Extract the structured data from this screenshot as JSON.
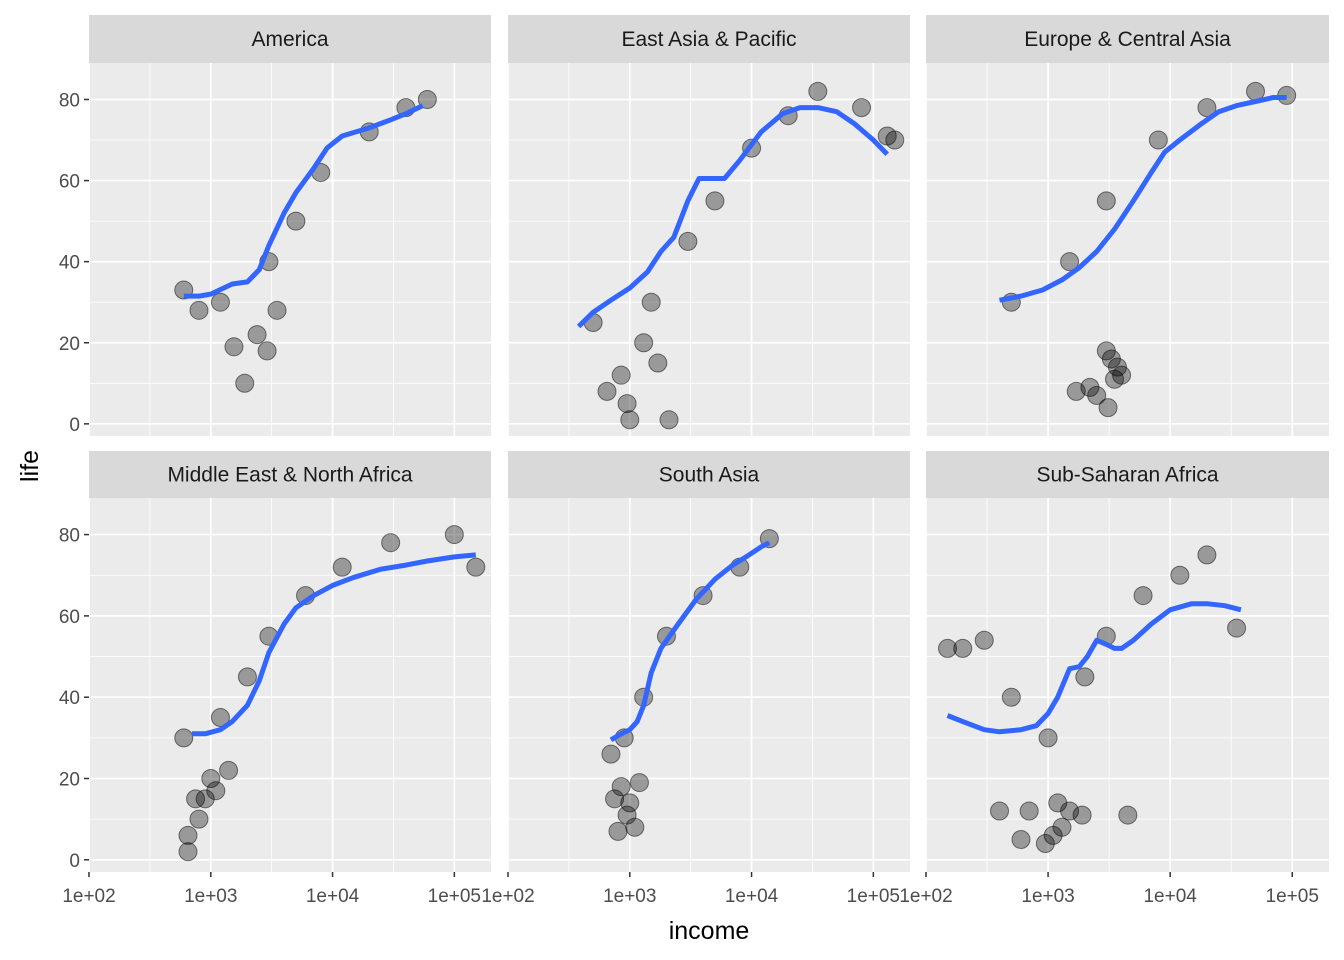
{
  "chart_data": {
    "type": "scatter",
    "xlabel": "income",
    "ylabel": "life",
    "x_scale": "log10",
    "xlim": [
      100,
      200000
    ],
    "ylim": [
      -3,
      89
    ],
    "x_ticks": [
      {
        "value": 100,
        "label": "1e+02"
      },
      {
        "value": 1000,
        "label": "1e+03"
      },
      {
        "value": 10000,
        "label": "1e+04"
      },
      {
        "value": 100000,
        "label": "1e+05"
      }
    ],
    "y_ticks": [
      {
        "value": 0,
        "label": "0"
      },
      {
        "value": 20,
        "label": "20"
      },
      {
        "value": 40,
        "label": "40"
      },
      {
        "value": 60,
        "label": "60"
      },
      {
        "value": 80,
        "label": "80"
      }
    ],
    "grid": true,
    "point_color": "#000000",
    "point_alpha": 0.35,
    "smooth_color": "#3366ff",
    "panel_bg": "#ebebeb",
    "strip_bg": "#d9d9d9",
    "panels": [
      {
        "label": "America",
        "points": [
          [
            1900,
            10
          ],
          [
            1550,
            19
          ],
          [
            2900,
            18
          ],
          [
            3500,
            28
          ],
          [
            2400,
            22
          ],
          [
            600,
            33
          ],
          [
            800,
            28
          ],
          [
            1200,
            30
          ],
          [
            3000,
            40
          ],
          [
            5000,
            50
          ],
          [
            8000,
            62
          ],
          [
            20000,
            72
          ],
          [
            40000,
            78
          ],
          [
            60000,
            80
          ]
        ],
        "smooth": [
          [
            600,
            31.5
          ],
          [
            800,
            31.5
          ],
          [
            1000,
            32
          ],
          [
            1500,
            34.5
          ],
          [
            2000,
            35
          ],
          [
            2500,
            38
          ],
          [
            3000,
            44
          ],
          [
            4000,
            52
          ],
          [
            5000,
            57
          ],
          [
            7000,
            63
          ],
          [
            9000,
            68
          ],
          [
            12000,
            71
          ],
          [
            20000,
            73
          ],
          [
            30000,
            75
          ],
          [
            40000,
            76.5
          ],
          [
            55000,
            78.5
          ]
        ]
      },
      {
        "label": "East Asia & Pacific",
        "points": [
          [
            650,
            8
          ],
          [
            850,
            12
          ],
          [
            1000,
            1
          ],
          [
            950,
            5
          ],
          [
            2100,
            1
          ],
          [
            1300,
            20
          ],
          [
            1700,
            15
          ],
          [
            500,
            25
          ],
          [
            1500,
            30
          ],
          [
            3000,
            45
          ],
          [
            5000,
            55
          ],
          [
            10000,
            68
          ],
          [
            20000,
            76
          ],
          [
            35000,
            82
          ],
          [
            80000,
            78
          ],
          [
            130000,
            71
          ],
          [
            150000,
            70
          ]
        ],
        "smooth": [
          [
            380,
            24
          ],
          [
            500,
            27.5
          ],
          [
            700,
            30.5
          ],
          [
            1000,
            33.5
          ],
          [
            1400,
            37.5
          ],
          [
            1800,
            42.5
          ],
          [
            2300,
            46
          ],
          [
            3000,
            55
          ],
          [
            3700,
            60.5
          ],
          [
            4500,
            60.5
          ],
          [
            6000,
            60.5
          ],
          [
            8000,
            65
          ],
          [
            12000,
            72
          ],
          [
            18000,
            76.5
          ],
          [
            25000,
            78
          ],
          [
            35000,
            78
          ],
          [
            50000,
            77
          ],
          [
            70000,
            74
          ],
          [
            100000,
            70
          ],
          [
            130000,
            66.5
          ]
        ]
      },
      {
        "label": "Europe & Central Asia",
        "points": [
          [
            1700,
            8
          ],
          [
            2500,
            7
          ],
          [
            3100,
            4
          ],
          [
            2200,
            9
          ],
          [
            3500,
            11
          ],
          [
            3700,
            14
          ],
          [
            3300,
            16
          ],
          [
            4000,
            12
          ],
          [
            3000,
            18
          ],
          [
            500,
            30
          ],
          [
            1500,
            40
          ],
          [
            3000,
            55
          ],
          [
            8000,
            70
          ],
          [
            20000,
            78
          ],
          [
            50000,
            82
          ],
          [
            90000,
            81
          ]
        ],
        "smooth": [
          [
            400,
            30.5
          ],
          [
            600,
            31.5
          ],
          [
            900,
            33
          ],
          [
            1300,
            35.5
          ],
          [
            1800,
            38.5
          ],
          [
            2500,
            42.5
          ],
          [
            3500,
            48
          ],
          [
            5000,
            55
          ],
          [
            7000,
            62
          ],
          [
            9000,
            67
          ],
          [
            12000,
            70
          ],
          [
            18000,
            74
          ],
          [
            25000,
            77
          ],
          [
            35000,
            78.5
          ],
          [
            50000,
            79.5
          ],
          [
            70000,
            80.5
          ],
          [
            90000,
            80.5
          ]
        ]
      },
      {
        "label": "Middle East & North Africa",
        "points": [
          [
            650,
            2
          ],
          [
            650,
            6
          ],
          [
            800,
            10
          ],
          [
            900,
            15
          ],
          [
            750,
            15
          ],
          [
            1100,
            17
          ],
          [
            1000,
            20
          ],
          [
            1400,
            22
          ],
          [
            600,
            30
          ],
          [
            1200,
            35
          ],
          [
            2000,
            45
          ],
          [
            3000,
            55
          ],
          [
            6000,
            65
          ],
          [
            12000,
            72
          ],
          [
            30000,
            78
          ],
          [
            100000,
            80
          ],
          [
            150000,
            72
          ]
        ],
        "smooth": [
          [
            700,
            31
          ],
          [
            900,
            31
          ],
          [
            1200,
            32
          ],
          [
            1500,
            34
          ],
          [
            2000,
            38
          ],
          [
            2500,
            44
          ],
          [
            3000,
            51
          ],
          [
            4000,
            58
          ],
          [
            5000,
            62
          ],
          [
            7000,
            65
          ],
          [
            10000,
            67.5
          ],
          [
            15000,
            69.5
          ],
          [
            25000,
            71.5
          ],
          [
            40000,
            72.5
          ],
          [
            60000,
            73.5
          ],
          [
            100000,
            74.5
          ],
          [
            150000,
            75
          ]
        ]
      },
      {
        "label": "South Asia",
        "points": [
          [
            800,
            7
          ],
          [
            1100,
            8
          ],
          [
            950,
            11
          ],
          [
            750,
            15
          ],
          [
            850,
            18
          ],
          [
            1000,
            14
          ],
          [
            1200,
            19
          ],
          [
            700,
            26
          ],
          [
            900,
            30
          ],
          [
            1300,
            40
          ],
          [
            2000,
            55
          ],
          [
            4000,
            65
          ],
          [
            8000,
            72
          ],
          [
            14000,
            79
          ]
        ],
        "smooth": [
          [
            700,
            29.5
          ],
          [
            850,
            31
          ],
          [
            1000,
            32
          ],
          [
            1150,
            34
          ],
          [
            1300,
            38
          ],
          [
            1500,
            46
          ],
          [
            1800,
            52
          ],
          [
            2500,
            58
          ],
          [
            3500,
            64
          ],
          [
            5000,
            69
          ],
          [
            7000,
            72.5
          ],
          [
            9000,
            74.5
          ],
          [
            12000,
            77
          ],
          [
            14000,
            78
          ]
        ]
      },
      {
        "label": "Sub-Saharan Africa",
        "points": [
          [
            950,
            4
          ],
          [
            600,
            5
          ],
          [
            1100,
            6
          ],
          [
            1300,
            8
          ],
          [
            1900,
            11
          ],
          [
            4500,
            11
          ],
          [
            700,
            12
          ],
          [
            1500,
            12
          ],
          [
            400,
            12
          ],
          [
            1200,
            14
          ],
          [
            150,
            52
          ],
          [
            200,
            52
          ],
          [
            300,
            54
          ],
          [
            500,
            40
          ],
          [
            1000,
            30
          ],
          [
            2000,
            45
          ],
          [
            3000,
            55
          ],
          [
            6000,
            65
          ],
          [
            12000,
            70
          ],
          [
            20000,
            75
          ],
          [
            35000,
            57
          ]
        ],
        "smooth": [
          [
            150,
            35.5
          ],
          [
            200,
            34
          ],
          [
            300,
            32
          ],
          [
            400,
            31.5
          ],
          [
            600,
            32
          ],
          [
            800,
            33
          ],
          [
            1000,
            36
          ],
          [
            1200,
            40
          ],
          [
            1500,
            47
          ],
          [
            1800,
            47.5
          ],
          [
            2100,
            50
          ],
          [
            2500,
            54
          ],
          [
            3000,
            53
          ],
          [
            3500,
            52
          ],
          [
            4000,
            52
          ],
          [
            5000,
            54
          ],
          [
            7000,
            58
          ],
          [
            10000,
            61.5
          ],
          [
            15000,
            63
          ],
          [
            20000,
            63
          ],
          [
            28000,
            62.5
          ],
          [
            38000,
            61.5
          ]
        ]
      }
    ]
  }
}
